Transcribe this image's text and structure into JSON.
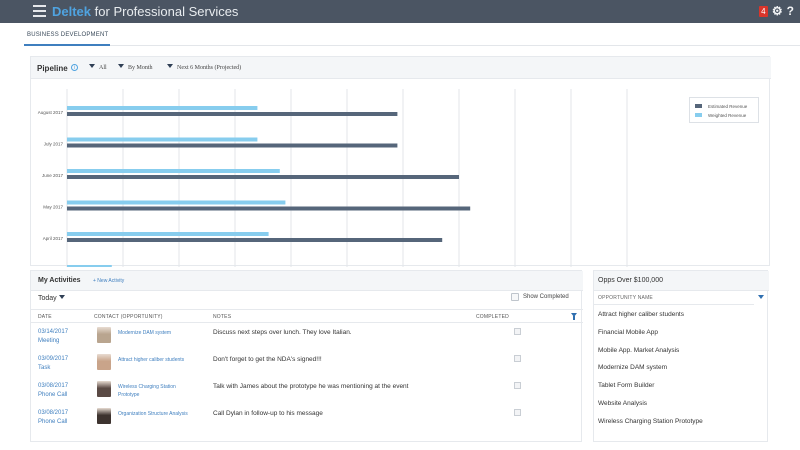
{
  "header": {
    "brand": "Deltek",
    "brand_suffix": "for Professional Services",
    "notification_count": "4",
    "help": "?"
  },
  "tabs": [
    {
      "label": "BUSINESS DEVELOPMENT"
    }
  ],
  "pipeline": {
    "title": "Pipeline",
    "filters": [
      "All",
      "By Month",
      "Next 6 Months (Projected)"
    ]
  },
  "chart_data": {
    "type": "bar",
    "orientation": "horizontal",
    "categories": [
      "August 2017",
      "July 2017",
      "June 2017",
      "May 2017",
      "April 2017"
    ],
    "series": [
      {
        "name": "Estimated Revenue",
        "color": "#56667a",
        "values": [
          5.9,
          5.9,
          7.0,
          7.2,
          6.7
        ]
      },
      {
        "name": "Weighted Revenue",
        "color": "#87cdee",
        "values": [
          3.4,
          3.4,
          3.8,
          3.9,
          3.6
        ]
      }
    ],
    "extra_partial_bar_value": 0.8,
    "xlim": [
      0,
      10
    ],
    "grid": true,
    "legend": "top-right"
  },
  "activities": {
    "title": "My Activities",
    "new_label": "+ New Activity",
    "period": "Today",
    "show_completed": "Show Completed",
    "columns": [
      "DATE",
      "CONTACT (OPPORTUNITY)",
      "NOTES",
      "COMPLETED"
    ],
    "rows": [
      {
        "date": "03/14/2017",
        "type": "Meeting",
        "contact": "Modernize DAM system",
        "note": "Discuss next steps over lunch. They love Italian.",
        "avatar_color": "#b9a58f"
      },
      {
        "date": "03/09/2017",
        "type": "Task",
        "contact": "Attract higher caliber students",
        "note": "Don't forget to get the NDA's signed!!!",
        "avatar_color": "#c9a48a"
      },
      {
        "date": "03/08/2017",
        "type": "Phone Call",
        "contact": "Wireless Charging Station Prototype",
        "note": "Talk with James about the prototype he was mentioning at the event",
        "avatar_color": "#5a4a44"
      },
      {
        "date": "03/08/2017",
        "type": "Phone Call",
        "contact": "Organization Structure Analysis",
        "note": "Call Dylan in follow-up to his message",
        "avatar_color": "#3d332f"
      }
    ]
  },
  "opps": {
    "title": "Opps Over $100,000",
    "column": "OPPORTUNITY NAME",
    "items": [
      "Attract higher caliber students",
      "Financial Mobile App",
      "Mobile App. Market Analysis",
      "Modernize DAM system",
      "Tablet Form Builder",
      "Website Analysis",
      "Wireless Charging Station Prototype"
    ]
  }
}
